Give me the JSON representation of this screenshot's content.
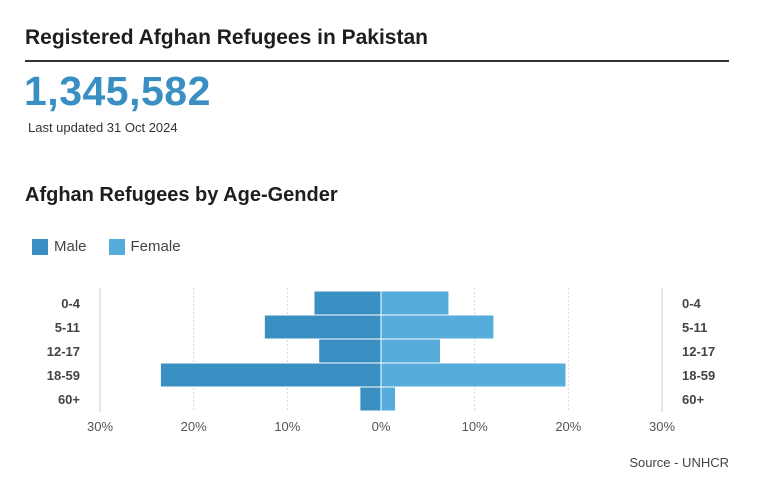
{
  "header": {
    "title": "Registered Afghan Refugees in Pakistan",
    "total": "1,345,582",
    "updated": "Last updated 31 Oct 2024"
  },
  "chart_heading": "Afghan Refugees by Age-Gender",
  "legend": {
    "male": "Male",
    "female": "Female"
  },
  "source": "Source - UNHCR",
  "colors": {
    "male": "#3a8fc2",
    "female": "#56acdb",
    "accent": "#3a8fc2"
  },
  "chart_data": {
    "type": "bar",
    "orientation": "horizontal-population-pyramid",
    "categories": [
      "0-4",
      "5-11",
      "12-17",
      "18-59",
      "60+"
    ],
    "series": [
      {
        "name": "Male",
        "values": [
          7.1,
          12.4,
          6.6,
          23.5,
          2.2
        ],
        "direction": "left"
      },
      {
        "name": "Female",
        "values": [
          7.2,
          12.0,
          6.3,
          19.7,
          1.5
        ],
        "direction": "right"
      }
    ],
    "xlim": [
      -30,
      30
    ],
    "xticks": [
      "30%",
      "20%",
      "10%",
      "0%",
      "10%",
      "20%",
      "30%"
    ],
    "grid": true,
    "legend_position": "top-left"
  }
}
